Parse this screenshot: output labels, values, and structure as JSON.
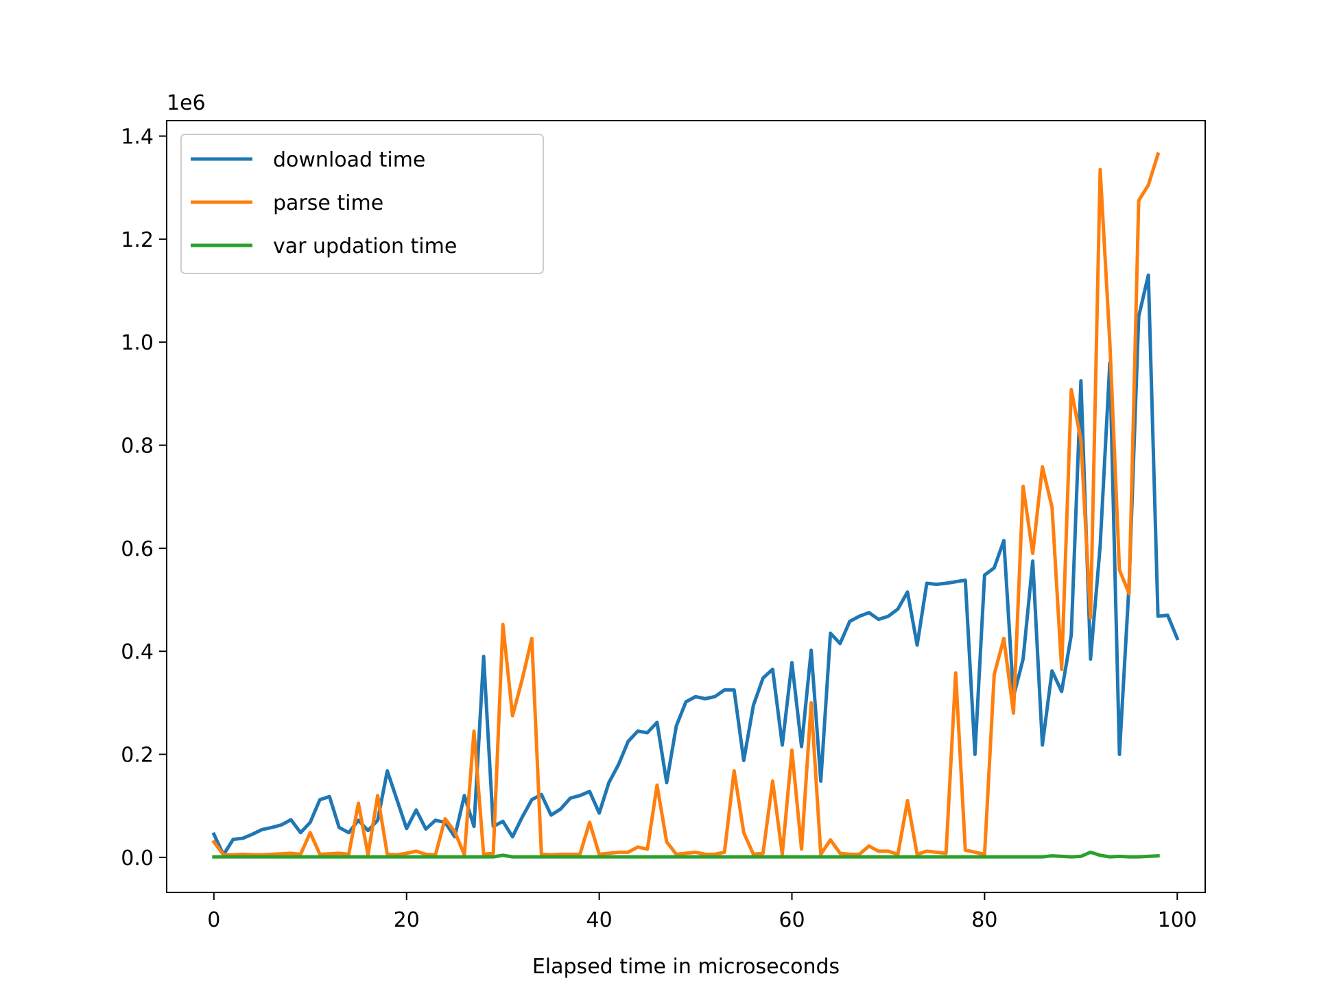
{
  "chart_data": {
    "type": "line",
    "title": "",
    "xlabel": "Elapsed time in microseconds",
    "ylabel": "",
    "y_offset_label": "1e6",
    "xlim": [
      -4.9,
      102.9
    ],
    "ylim": [
      -0.068,
      1.43
    ],
    "x_ticks": [
      0,
      20,
      40,
      60,
      80,
      100
    ],
    "x_tick_labels": [
      "0",
      "20",
      "40",
      "60",
      "80",
      "100"
    ],
    "y_ticks": [
      0.0,
      0.2,
      0.4,
      0.6,
      0.8,
      1.0,
      1.2,
      1.4
    ],
    "y_tick_labels": [
      "0.0",
      "0.2",
      "0.4",
      "0.6",
      "0.8",
      "1.0",
      "1.2",
      "1.4"
    ],
    "grid": false,
    "legend_position": "top-left",
    "series": [
      {
        "name": "download time",
        "color": "#1f77b4",
        "values": [
          0.045,
          0.005,
          0.035,
          0.037,
          0.045,
          0.054,
          0.058,
          0.063,
          0.073,
          0.048,
          0.068,
          0.112,
          0.118,
          0.058,
          0.048,
          0.072,
          0.052,
          0.072,
          0.168,
          0.112,
          0.056,
          0.092,
          0.055,
          0.072,
          0.068,
          0.04,
          0.12,
          0.06,
          0.39,
          0.06,
          0.07,
          0.04,
          0.078,
          0.112,
          0.122,
          0.082,
          0.094,
          0.115,
          0.12,
          0.128,
          0.086,
          0.145,
          0.18,
          0.225,
          0.245,
          0.242,
          0.262,
          0.145,
          0.255,
          0.302,
          0.312,
          0.308,
          0.312,
          0.325,
          0.325,
          0.188,
          0.295,
          0.348,
          0.365,
          0.218,
          0.378,
          0.215,
          0.402,
          0.148,
          0.435,
          0.415,
          0.458,
          0.468,
          0.475,
          0.462,
          0.468,
          0.482,
          0.515,
          0.412,
          0.532,
          0.53,
          0.532,
          0.535,
          0.538,
          0.2,
          0.548,
          0.562,
          0.615,
          0.312,
          0.385,
          0.575,
          0.218,
          0.362,
          0.322,
          0.432,
          0.925,
          0.385,
          0.605,
          0.96,
          0.2,
          0.53,
          1.05,
          1.13,
          0.468,
          0.47,
          0.425
        ]
      },
      {
        "name": "parse time",
        "color": "#ff7f0e",
        "values": [
          0.03,
          0.005,
          0.005,
          0.006,
          0.005,
          0.005,
          0.006,
          0.007,
          0.008,
          0.006,
          0.048,
          0.006,
          0.007,
          0.008,
          0.006,
          0.105,
          0.005,
          0.12,
          0.006,
          0.005,
          0.008,
          0.012,
          0.006,
          0.005,
          0.075,
          0.05,
          0.005,
          0.245,
          0.006,
          0.008,
          0.452,
          0.275,
          0.345,
          0.425,
          0.006,
          0.005,
          0.006,
          0.006,
          0.006,
          0.068,
          0.006,
          0.008,
          0.01,
          0.01,
          0.02,
          0.016,
          0.14,
          0.03,
          0.006,
          0.008,
          0.01,
          0.006,
          0.006,
          0.01,
          0.168,
          0.048,
          0.006,
          0.008,
          0.148,
          0.006,
          0.208,
          0.016,
          0.3,
          0.006,
          0.034,
          0.008,
          0.006,
          0.006,
          0.022,
          0.012,
          0.012,
          0.006,
          0.11,
          0.006,
          0.012,
          0.01,
          0.008,
          0.358,
          0.014,
          0.01,
          0.006,
          0.355,
          0.425,
          0.28,
          0.72,
          0.59,
          0.758,
          0.68,
          0.365,
          0.908,
          0.81,
          0.465,
          1.335,
          1.0,
          0.558,
          0.512,
          1.275,
          1.305,
          1.365
        ]
      },
      {
        "name": "var updation time",
        "color": "#2ca02c",
        "values": [
          0.001,
          0.001,
          0.001,
          0.001,
          0.001,
          0.001,
          0.001,
          0.001,
          0.001,
          0.001,
          0.001,
          0.001,
          0.001,
          0.001,
          0.001,
          0.001,
          0.001,
          0.001,
          0.001,
          0.001,
          0.001,
          0.001,
          0.001,
          0.001,
          0.001,
          0.001,
          0.001,
          0.001,
          0.001,
          0.001,
          0.004,
          0.001,
          0.001,
          0.001,
          0.001,
          0.001,
          0.001,
          0.001,
          0.001,
          0.001,
          0.001,
          0.001,
          0.001,
          0.001,
          0.001,
          0.001,
          0.001,
          0.001,
          0.001,
          0.001,
          0.001,
          0.001,
          0.001,
          0.001,
          0.001,
          0.001,
          0.001,
          0.001,
          0.001,
          0.001,
          0.001,
          0.001,
          0.001,
          0.001,
          0.001,
          0.001,
          0.001,
          0.001,
          0.001,
          0.001,
          0.001,
          0.001,
          0.001,
          0.001,
          0.001,
          0.001,
          0.001,
          0.001,
          0.001,
          0.001,
          0.001,
          0.001,
          0.001,
          0.001,
          0.001,
          0.001,
          0.001,
          0.003,
          0.002,
          0.001,
          0.002,
          0.01,
          0.004,
          0.001,
          0.002,
          0.001,
          0.001,
          0.002,
          0.003
        ]
      }
    ]
  }
}
